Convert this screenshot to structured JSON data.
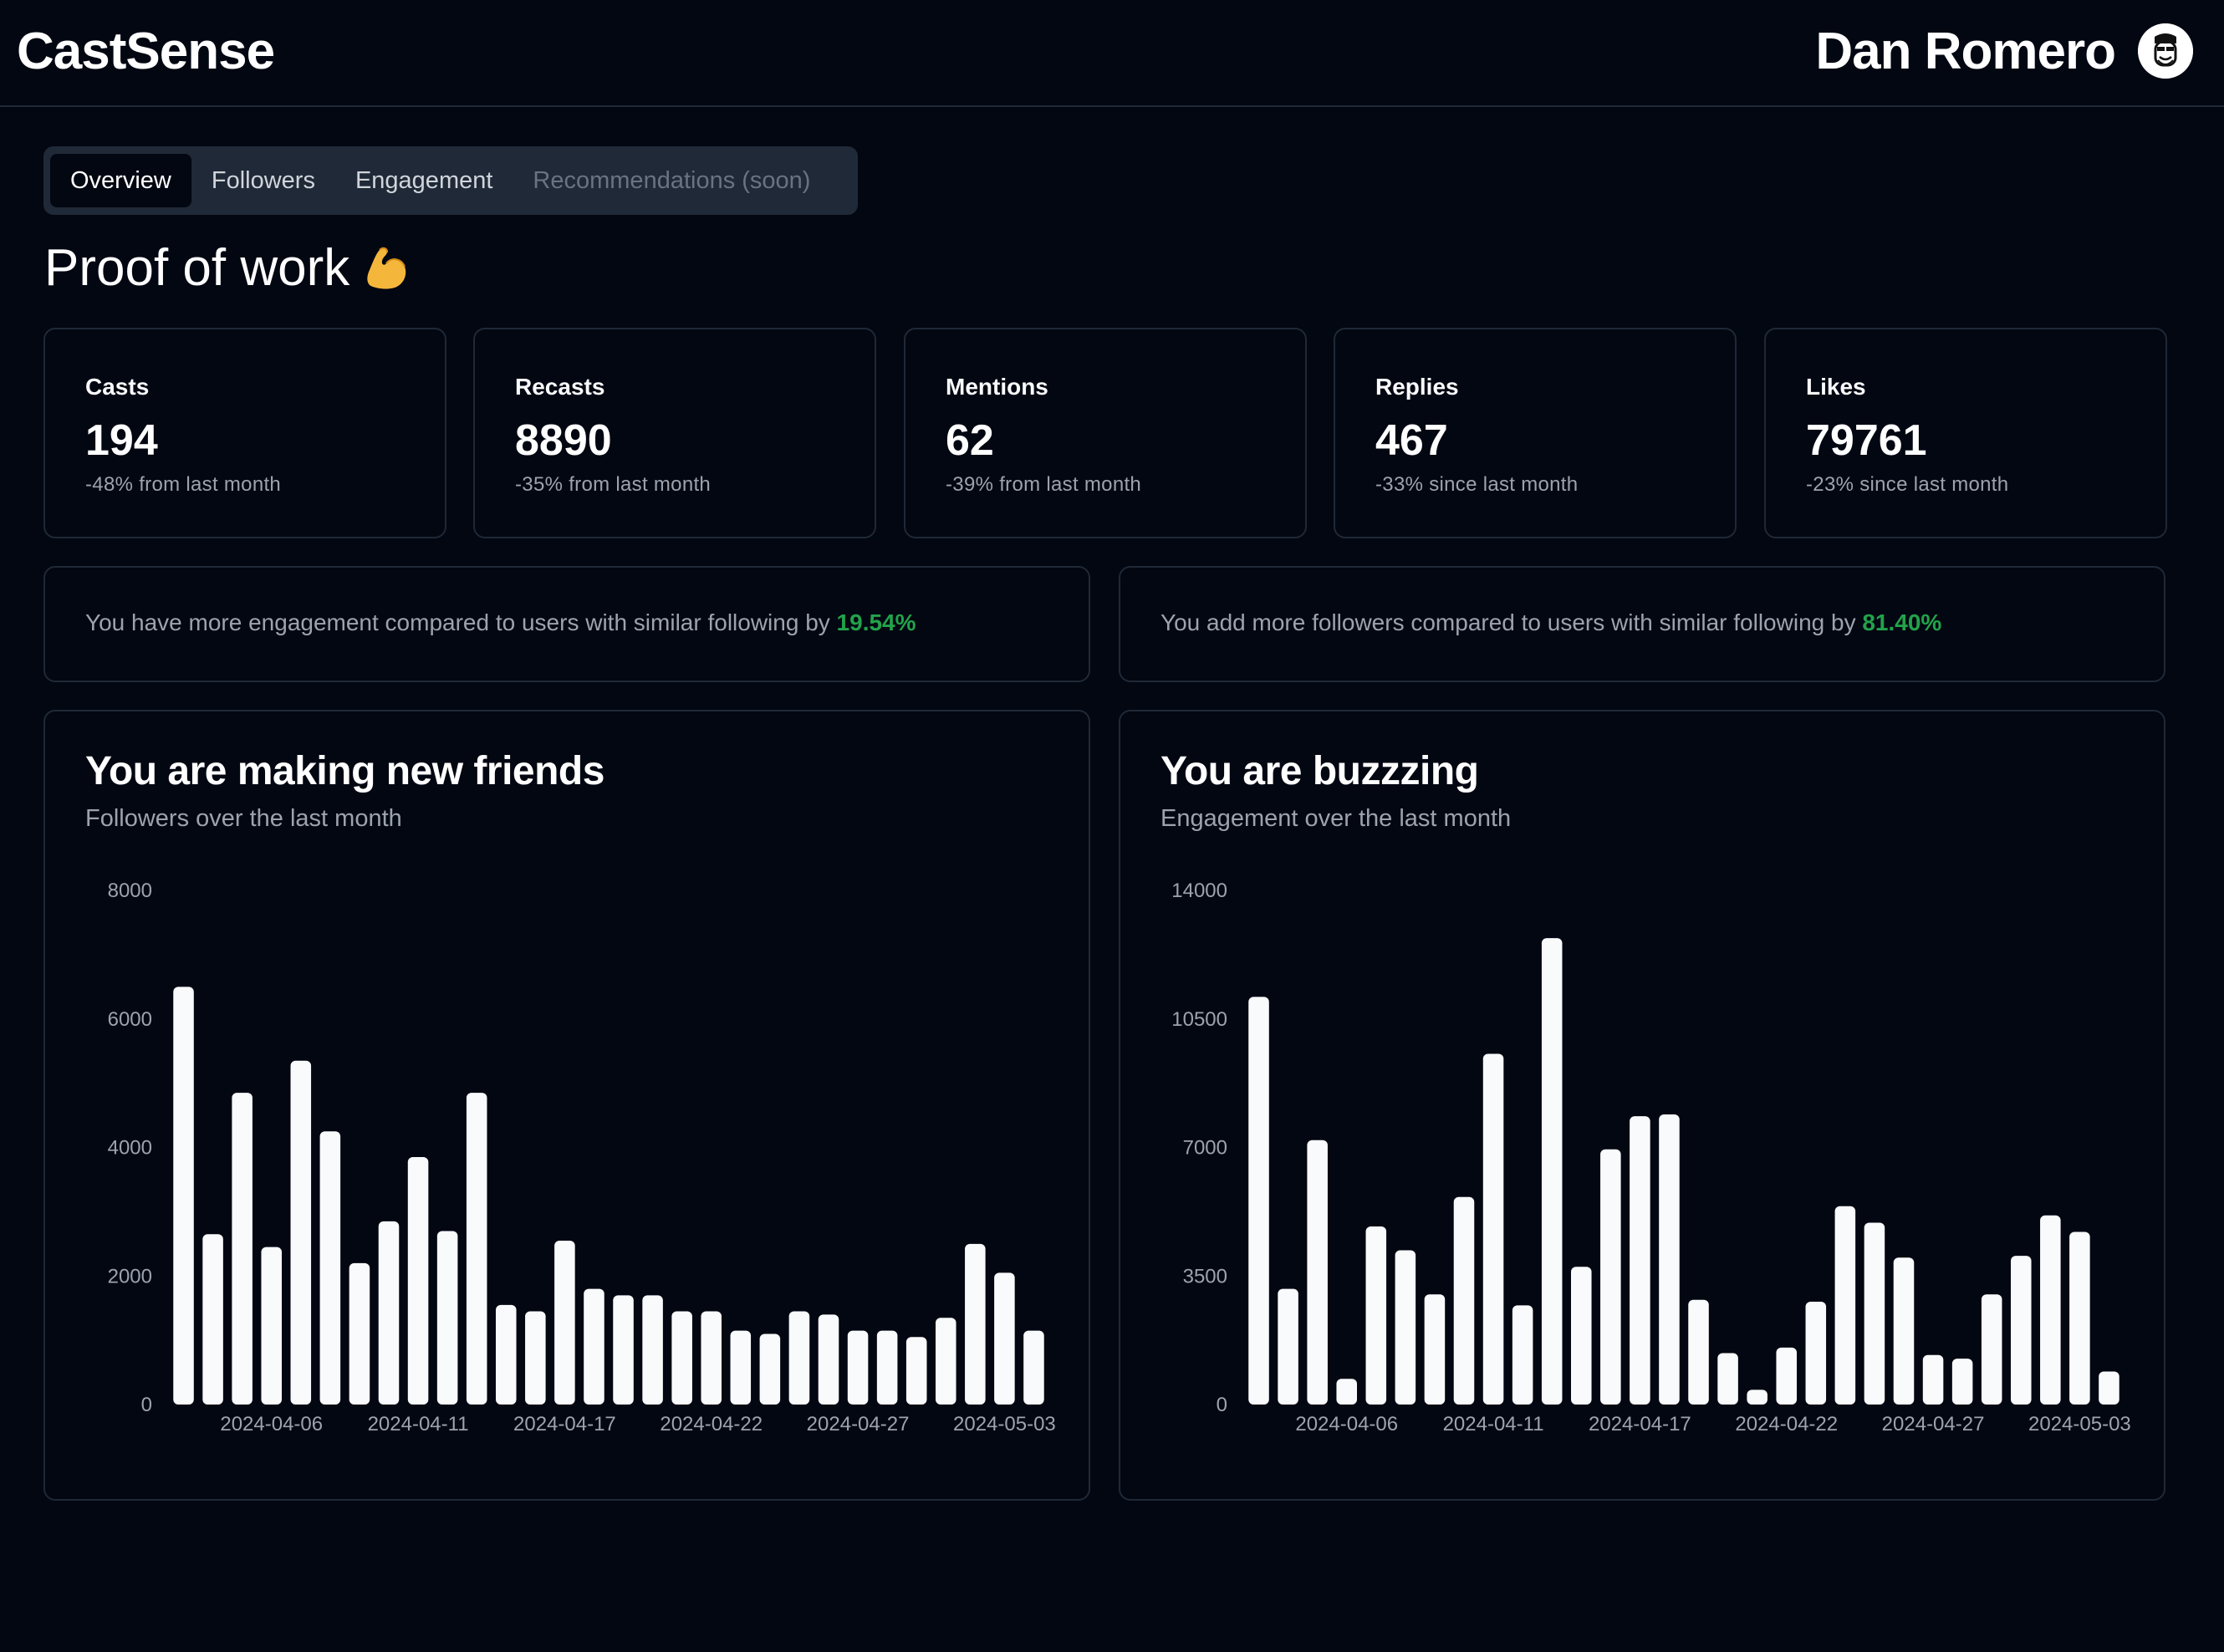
{
  "header": {
    "brand": "CastSense",
    "user_name": "Dan Romero"
  },
  "tabs": [
    {
      "label": "Overview",
      "active": true
    },
    {
      "label": "Followers",
      "active": false
    },
    {
      "label": "Engagement",
      "active": false
    },
    {
      "label": "Recommendations (soon)",
      "active": false,
      "disabled": true
    }
  ],
  "section_title": "Proof of work",
  "stats": [
    {
      "label": "Casts",
      "value": "194",
      "delta": "-48% from last month"
    },
    {
      "label": "Recasts",
      "value": "8890",
      "delta": "-35% from last month"
    },
    {
      "label": "Mentions",
      "value": "62",
      "delta": "-39% from last month"
    },
    {
      "label": "Replies",
      "value": "467",
      "delta": "-33% since last month"
    },
    {
      "label": "Likes",
      "value": "79761",
      "delta": "-23% since last month"
    }
  ],
  "comparisons": [
    {
      "text": "You have more engagement compared to users with similar following by ",
      "pct": "19.54%"
    },
    {
      "text": "You add more followers compared to users with similar following by ",
      "pct": "81.40%"
    }
  ],
  "colors": {
    "background": "#030712",
    "border": "#1f2937",
    "accent_green": "#22a34a",
    "bar": "#f9fafb"
  },
  "chart_data": [
    {
      "type": "bar",
      "title": "You are making new friends",
      "subtitle": "Followers over the last month",
      "yticks": [
        0,
        2000,
        4000,
        6000,
        8000
      ],
      "ylim": [
        0,
        8000
      ],
      "xtick_labels": [
        "2024-04-06",
        "2024-04-11",
        "2024-04-17",
        "2024-04-22",
        "2024-04-27",
        "2024-05-03"
      ],
      "xtick_indices": [
        3,
        8,
        13,
        18,
        23,
        28
      ],
      "values": [
        6500,
        2650,
        4850,
        2450,
        5350,
        4250,
        2200,
        2850,
        3850,
        2700,
        4850,
        1550,
        1450,
        2550,
        1800,
        1700,
        1700,
        1450,
        1450,
        1150,
        1100,
        1450,
        1400,
        1150,
        1150,
        1050,
        1350,
        2500,
        2050,
        1150
      ],
      "grid": false,
      "legend": false
    },
    {
      "type": "bar",
      "title": "You are buzzzing",
      "subtitle": "Engagement over the last month",
      "yticks": [
        0,
        3500,
        7000,
        10500,
        14000
      ],
      "ylim": [
        0,
        14000
      ],
      "xtick_labels": [
        "2024-04-06",
        "2024-04-11",
        "2024-04-17",
        "2024-04-22",
        "2024-04-27",
        "2024-05-03"
      ],
      "xtick_indices": [
        3,
        8,
        13,
        18,
        23,
        28
      ],
      "values": [
        11100,
        3150,
        7200,
        700,
        4850,
        4200,
        3000,
        5650,
        9550,
        2700,
        12700,
        3750,
        6950,
        7850,
        7900,
        2850,
        1400,
        400,
        1550,
        2800,
        5400,
        4950,
        4000,
        1350,
        1250,
        3000,
        4050,
        5150,
        4700,
        900
      ],
      "grid": false,
      "legend": false
    }
  ]
}
